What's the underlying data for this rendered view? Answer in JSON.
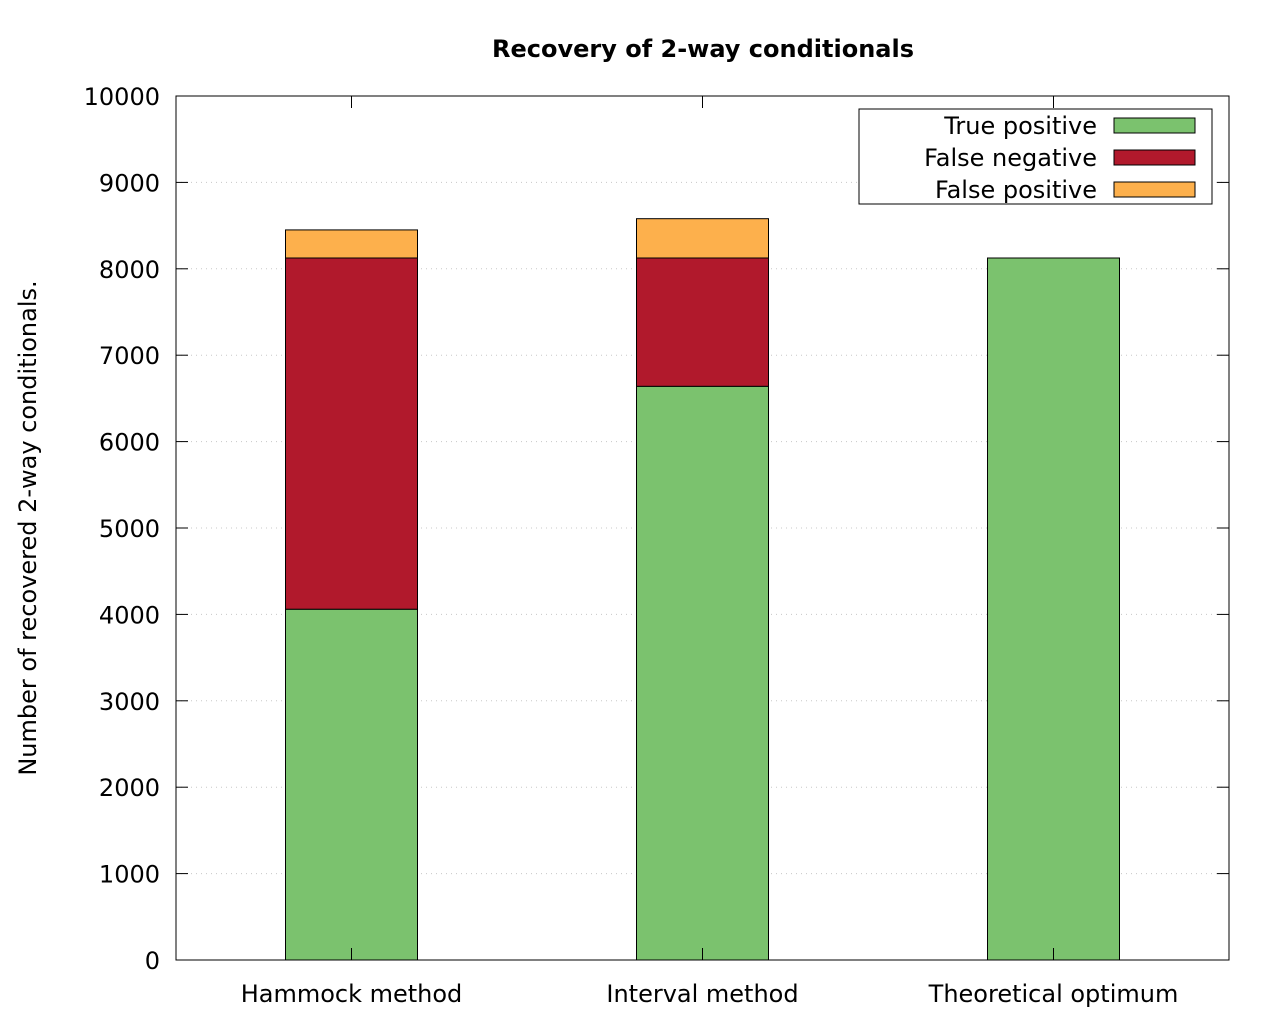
{
  "chart_data": {
    "type": "bar",
    "stacked": true,
    "title": "Recovery of 2-way conditionals",
    "xlabel": "",
    "ylabel": "Number of recovered 2-way conditionals.",
    "ylim": [
      0,
      10000
    ],
    "yticks": [
      0,
      1000,
      2000,
      3000,
      4000,
      5000,
      6000,
      7000,
      8000,
      9000,
      10000
    ],
    "categories": [
      "Hammock method",
      "Interval method",
      "Theoretical optimum"
    ],
    "series": [
      {
        "name": "True positive",
        "color": "#7bc26e",
        "values": [
          4060,
          6640,
          8125
        ]
      },
      {
        "name": "False negative",
        "color": "#b1192c",
        "values": [
          4065,
          1485,
          0
        ]
      },
      {
        "name": "False positive",
        "color": "#fdb04c",
        "values": [
          325,
          455,
          0
        ]
      }
    ],
    "grid": "y-dotted",
    "legend_position": "top-right"
  }
}
